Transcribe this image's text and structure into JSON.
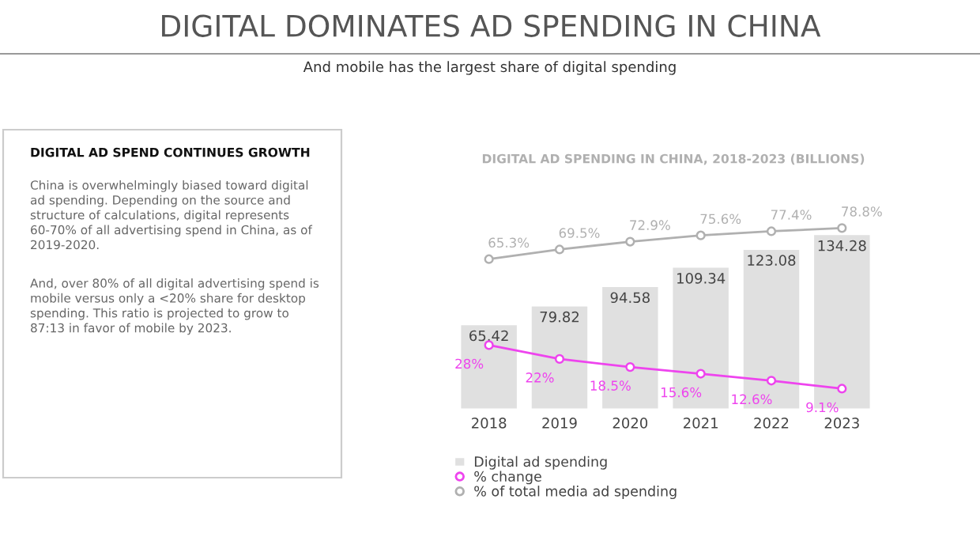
{
  "chart_data": {
    "type": "bar",
    "title": "DIGITAL DOMINATES AD SPENDING IN CHINA",
    "subtitle": "And mobile has the largest share of digital spending",
    "annotations": [
      "DIGITAL AD SPEND CONTINUES GROWTH",
      "China is overwhelmingly biased toward digital ad spending. Depending on the source and structure of calculations, digital represents 60-70% of all advertising spend in China, as of 2019-2020.",
      "And, over 80% of all digital advertising spend is mobile versus only a <20% share for desktop spending. This ratio is projected to grow to 87:13 in favor of mobile by 2023.",
      "DIGITAL AD SPENDING IN CHINA, 2018-2023 (BILLIONS)"
    ],
    "categories": [
      "2018",
      "2019",
      "2020",
      "2021",
      "2022",
      "2023"
    ],
    "series": [
      {
        "name": "Digital ad spending",
        "color": "#e0e0e0",
        "values": [
          65.42,
          79.82,
          94.58,
          109.34,
          123.08,
          134.28
        ],
        "value_labels": [
          "65.42",
          "79.82",
          "94.58",
          "109.34",
          "123.08",
          "134.28"
        ]
      },
      {
        "name": "% change",
        "type": "line",
        "axis": "y2",
        "color": "#ee44ee",
        "marker": "circle",
        "values": [
          28,
          22,
          18.5,
          15.6,
          12.6,
          9.1
        ],
        "value_labels": [
          "28%",
          "22%",
          "18.5%",
          "15.6%",
          "12.6%",
          "9.1%"
        ]
      },
      {
        "name": "% of total media ad spending",
        "type": "line",
        "axis": "y2",
        "color": "#b0b0b0",
        "marker": "circle",
        "values": [
          65.3,
          69.5,
          72.9,
          75.6,
          77.4,
          78.8
        ],
        "value_labels": [
          "65.3%",
          "69.5%",
          "72.9%",
          "75.6%",
          "77.4%",
          "78.8%"
        ]
      }
    ],
    "tick_labels": "x",
    "grid": false,
    "legend": "bottom left"
  }
}
